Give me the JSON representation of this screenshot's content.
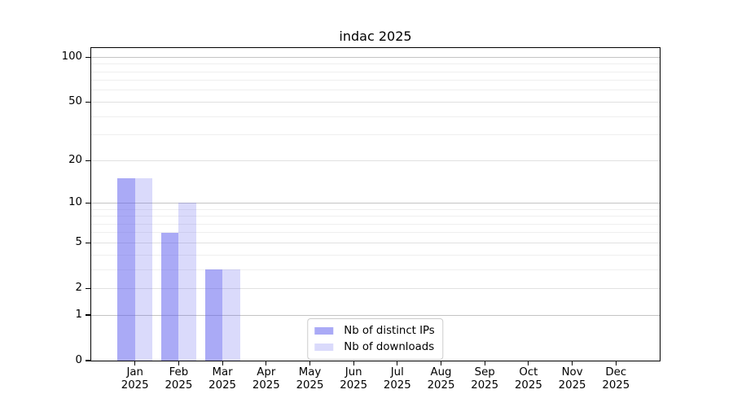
{
  "chart_data": {
    "type": "bar",
    "title": "indac 2025",
    "categories": [
      "Jan",
      "Feb",
      "Mar",
      "Apr",
      "May",
      "Jun",
      "Jul",
      "Aug",
      "Sep",
      "Oct",
      "Nov",
      "Dec"
    ],
    "category_year": "2025",
    "series": [
      {
        "name": "Nb of distinct IPs",
        "color": "rgba(85,85,238,0.50)",
        "values": [
          15,
          6,
          3,
          0,
          0,
          0,
          0,
          0,
          0,
          0,
          0,
          0
        ]
      },
      {
        "name": "Nb of downloads",
        "color": "rgba(85,85,238,0.22)",
        "values": [
          15,
          10,
          3,
          0,
          0,
          0,
          0,
          0,
          0,
          0,
          0,
          0
        ]
      }
    ],
    "xlabel": "",
    "ylabel": "",
    "yscale": "log1p",
    "ylim": [
      0,
      115
    ],
    "yticks": [
      0,
      1,
      2,
      5,
      10,
      20,
      50,
      100
    ],
    "grid": {
      "major": {
        "values": [
          1,
          10,
          100
        ],
        "color": "#c4c4c4"
      },
      "secondary": {
        "values": [
          2,
          5,
          20,
          50
        ],
        "color": "#e1e1e1"
      },
      "minor": {
        "values": [
          3,
          4,
          6,
          7,
          8,
          9,
          30,
          40,
          60,
          70,
          80,
          90
        ],
        "color": "#efefef"
      }
    },
    "legend": {
      "position": "lower center",
      "border_color": "#cccccc"
    },
    "bar_width_fraction": 0.4,
    "colors": {
      "spine": "#000000",
      "text": "#000000",
      "background": "#ffffff"
    }
  }
}
